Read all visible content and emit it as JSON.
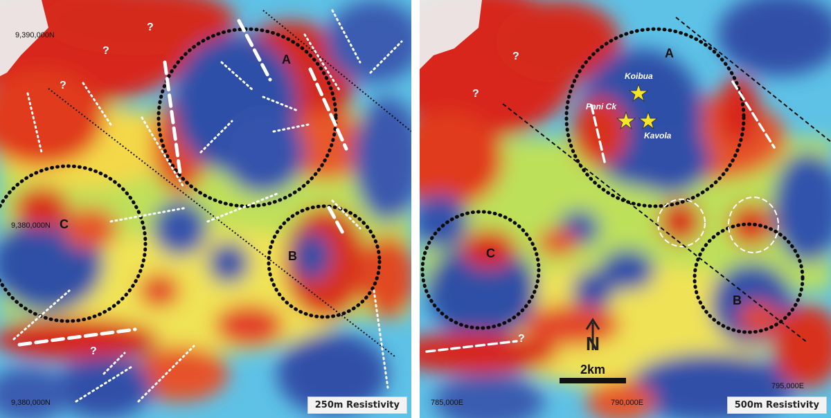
{
  "panels": [
    {
      "caption": "250m Resistivity",
      "coords": {
        "top_north": "9,390,000N",
        "mid_north": "9,380,000N",
        "bottom_north": "9,380,000N"
      },
      "zone_labels": [
        "A",
        "B",
        "C"
      ],
      "question_marks": [
        "?",
        "?",
        "?",
        "?"
      ]
    },
    {
      "caption": "500m Resistivity",
      "coords": {
        "east_left": "785,000E",
        "east_mid": "790,000E",
        "east_right": "795,000E"
      },
      "zone_labels": [
        "A",
        "B",
        "C"
      ],
      "question_marks": [
        "?",
        "?",
        "?"
      ],
      "prospects": [
        "Koibua",
        "Pani Ck",
        "Kavola"
      ],
      "north_arrow": "N",
      "scale_bar": "2km"
    }
  ],
  "colors": {
    "high_resistivity": "#d8251a",
    "mid": "#f6e45a",
    "low_resistivity": "#2e4fa7",
    "transition": "#56c3e8",
    "star": "#f5e62a"
  },
  "icons": {
    "prospect_marker": "star-icon",
    "north": "north-arrow-icon"
  }
}
